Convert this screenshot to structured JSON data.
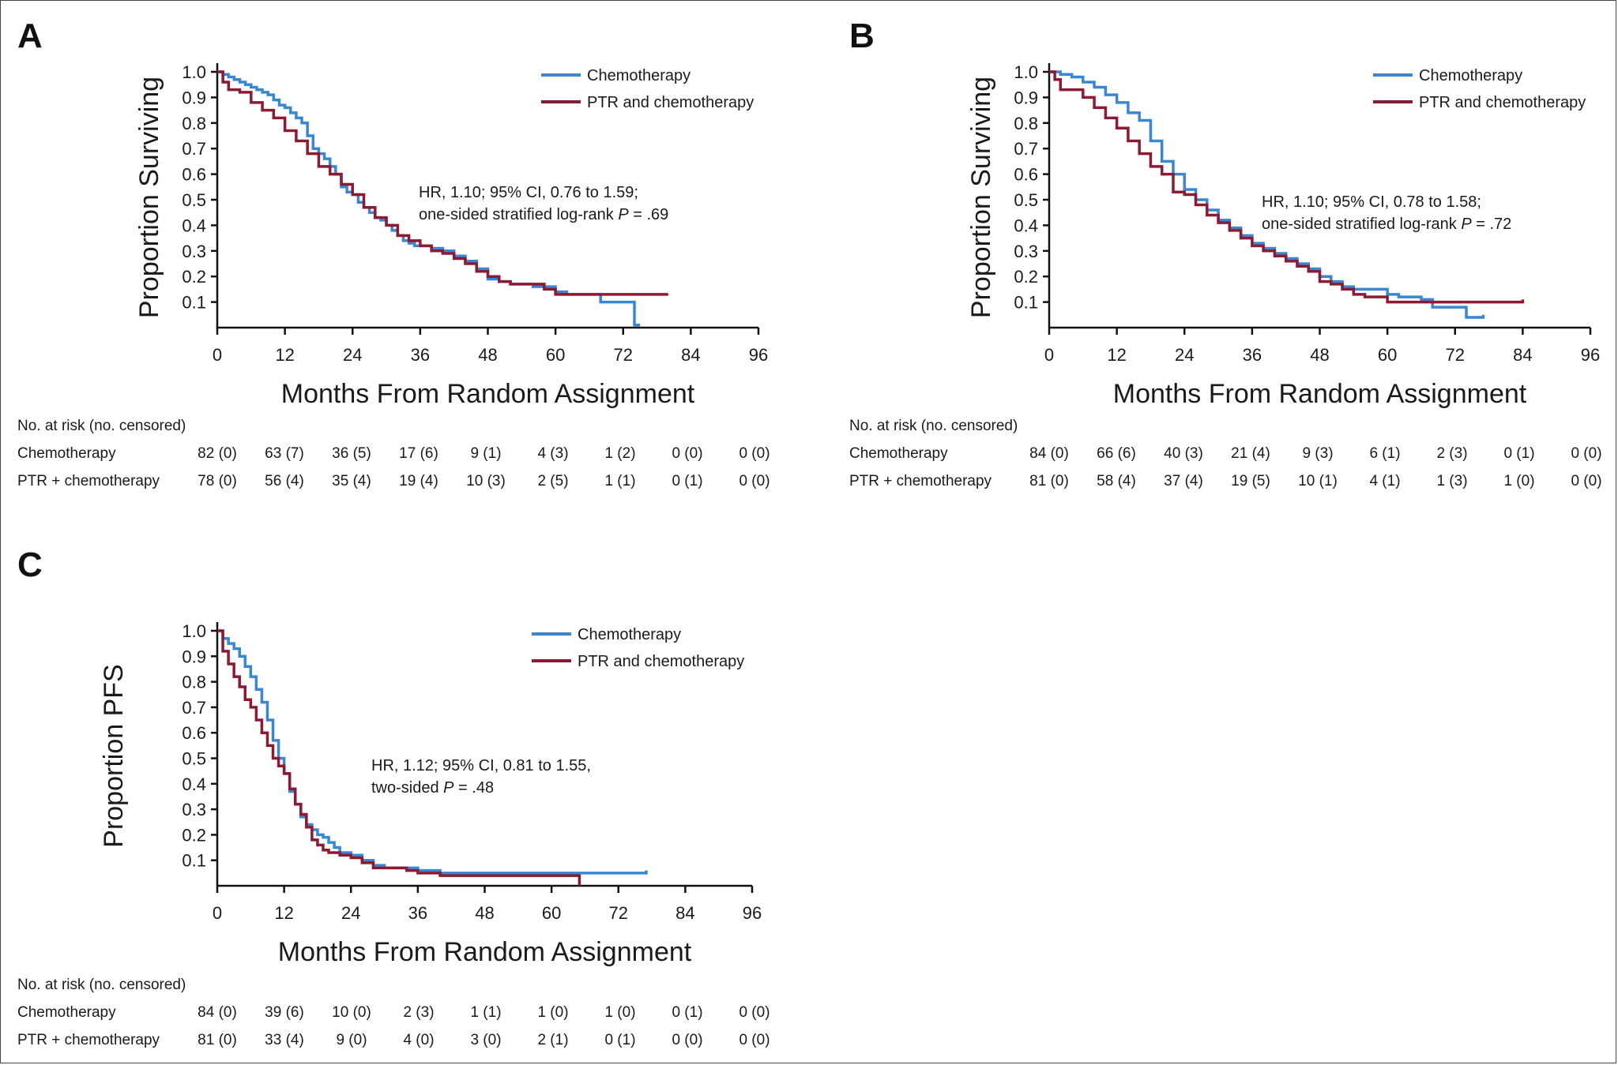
{
  "colors": {
    "chemo": "#3a86d1",
    "ptr": "#8b1a32",
    "axis": "#111111"
  },
  "chart_data": [
    {
      "panel": "A",
      "type": "line",
      "ylabel": "Proportion Surviving",
      "xlabel": "Months From Random Assignment",
      "xlim": [
        0,
        96
      ],
      "ylim": [
        0,
        1.0
      ],
      "xticks": [
        "0",
        "12",
        "24",
        "36",
        "48",
        "60",
        "72",
        "84",
        "96"
      ],
      "yticks": [
        "1.0",
        "0.9",
        "0.8",
        "0.7",
        "0.6",
        "0.5",
        "0.4",
        "0.3",
        "0.2",
        "0.1"
      ],
      "legend": [
        "Chemotherapy",
        "PTR and chemotherapy"
      ],
      "annotation_line1": "HR, 1.10; 95% CI, 0.76 to 1.59;",
      "annotation_line2_prefix": "one-sided stratified log-rank ",
      "annotation_p": "P",
      "annotation_line2_suffix": " = .69",
      "series": [
        {
          "name": "Chemotherapy",
          "x": [
            0,
            1,
            2,
            3,
            4,
            5,
            6,
            7,
            8,
            9,
            10,
            11,
            12,
            13,
            14,
            15,
            16,
            17,
            18,
            19,
            20,
            21,
            22,
            23,
            24,
            25,
            26,
            27,
            28,
            29,
            30,
            31,
            32,
            33,
            34,
            35,
            36,
            38,
            40,
            42,
            44,
            46,
            48,
            50,
            52,
            54,
            56,
            58,
            60,
            62,
            64,
            66,
            68,
            70,
            72,
            74,
            75
          ],
          "y": [
            1.0,
            0.99,
            0.98,
            0.97,
            0.96,
            0.95,
            0.94,
            0.93,
            0.92,
            0.91,
            0.89,
            0.87,
            0.86,
            0.84,
            0.82,
            0.8,
            0.75,
            0.7,
            0.68,
            0.66,
            0.63,
            0.6,
            0.55,
            0.53,
            0.52,
            0.49,
            0.47,
            0.45,
            0.43,
            0.42,
            0.4,
            0.38,
            0.36,
            0.34,
            0.33,
            0.32,
            0.32,
            0.31,
            0.3,
            0.28,
            0.26,
            0.23,
            0.19,
            0.18,
            0.17,
            0.17,
            0.16,
            0.16,
            0.14,
            0.13,
            0.13,
            0.13,
            0.1,
            0.1,
            0.1,
            0.01,
            0.01
          ]
        },
        {
          "name": "PTR and chemotherapy",
          "x": [
            0,
            1,
            2,
            4,
            6,
            8,
            10,
            12,
            14,
            16,
            18,
            20,
            22,
            24,
            26,
            28,
            30,
            32,
            34,
            36,
            38,
            40,
            42,
            44,
            46,
            48,
            50,
            52,
            54,
            56,
            58,
            60,
            62,
            64,
            66,
            68,
            70,
            72,
            74,
            76,
            78,
            80
          ],
          "y": [
            1.0,
            0.96,
            0.93,
            0.92,
            0.88,
            0.85,
            0.82,
            0.77,
            0.73,
            0.68,
            0.63,
            0.6,
            0.56,
            0.52,
            0.47,
            0.43,
            0.4,
            0.36,
            0.34,
            0.32,
            0.3,
            0.29,
            0.27,
            0.25,
            0.22,
            0.2,
            0.18,
            0.17,
            0.17,
            0.17,
            0.15,
            0.13,
            0.13,
            0.13,
            0.13,
            0.13,
            0.13,
            0.13,
            0.13,
            0.13,
            0.13,
            0.13
          ]
        }
      ],
      "risk": {
        "header": "No. at risk (no. censored)",
        "rows": [
          {
            "label": "Chemotherapy",
            "values": [
              "82 (0)",
              "63 (7)",
              "36 (5)",
              "17 (6)",
              "9 (1)",
              "4 (3)",
              "1 (2)",
              "0 (0)",
              "0 (0)"
            ]
          },
          {
            "label": "PTR  + chemotherapy",
            "values": [
              "78 (0)",
              "56 (4)",
              "35 (4)",
              "19 (4)",
              "10 (3)",
              "2 (5)",
              "1 (1)",
              "0 (1)",
              "0 (0)"
            ]
          }
        ]
      }
    },
    {
      "panel": "B",
      "type": "line",
      "ylabel": "Proportion Surviving",
      "xlabel": "Months From Random Assignment",
      "xlim": [
        0,
        96
      ],
      "ylim": [
        0,
        1.0
      ],
      "xticks": [
        "0",
        "12",
        "24",
        "36",
        "48",
        "60",
        "72",
        "84",
        "96"
      ],
      "yticks": [
        "1.0",
        "0.9",
        "0.8",
        "0.7",
        "0.6",
        "0.5",
        "0.4",
        "0.3",
        "0.2",
        "0.1"
      ],
      "legend": [
        "Chemotherapy",
        "PTR and chemotherapy"
      ],
      "annotation_line1": "HR, 1.10; 95% CI, 0.78 to 1.58;",
      "annotation_line2_prefix": "one-sided stratified log-rank ",
      "annotation_p": "P",
      "annotation_line2_suffix": " = .72",
      "series": [
        {
          "name": "Chemotherapy",
          "x": [
            0,
            2,
            4,
            6,
            8,
            10,
            12,
            14,
            16,
            18,
            20,
            22,
            24,
            26,
            28,
            30,
            32,
            34,
            36,
            38,
            40,
            42,
            44,
            46,
            48,
            50,
            52,
            54,
            56,
            58,
            60,
            62,
            64,
            66,
            68,
            70,
            72,
            74,
            76,
            77
          ],
          "y": [
            1.0,
            0.99,
            0.98,
            0.96,
            0.94,
            0.91,
            0.88,
            0.84,
            0.81,
            0.73,
            0.65,
            0.6,
            0.54,
            0.5,
            0.46,
            0.42,
            0.39,
            0.36,
            0.33,
            0.31,
            0.29,
            0.27,
            0.25,
            0.23,
            0.2,
            0.18,
            0.16,
            0.15,
            0.15,
            0.15,
            0.13,
            0.12,
            0.12,
            0.11,
            0.08,
            0.08,
            0.08,
            0.04,
            0.04,
            0.05
          ]
        },
        {
          "name": "PTR and chemotherapy",
          "x": [
            0,
            1,
            2,
            4,
            6,
            8,
            10,
            12,
            14,
            16,
            18,
            20,
            22,
            24,
            26,
            28,
            30,
            32,
            34,
            36,
            38,
            40,
            42,
            44,
            46,
            48,
            50,
            52,
            54,
            56,
            58,
            60,
            62,
            64,
            66,
            68,
            70,
            72,
            74,
            76,
            78,
            80,
            82,
            84
          ],
          "y": [
            1.0,
            0.97,
            0.93,
            0.93,
            0.9,
            0.86,
            0.82,
            0.78,
            0.73,
            0.68,
            0.63,
            0.6,
            0.53,
            0.52,
            0.48,
            0.44,
            0.41,
            0.38,
            0.35,
            0.32,
            0.3,
            0.28,
            0.26,
            0.24,
            0.22,
            0.18,
            0.17,
            0.15,
            0.13,
            0.12,
            0.12,
            0.1,
            0.1,
            0.1,
            0.1,
            0.1,
            0.1,
            0.1,
            0.1,
            0.1,
            0.1,
            0.1,
            0.1,
            0.11
          ]
        }
      ],
      "risk": {
        "header": "No. at risk (no. censored)",
        "rows": [
          {
            "label": "Chemotherapy",
            "values": [
              "84 (0)",
              "66 (6)",
              "40 (3)",
              "21 (4)",
              "9 (3)",
              "6 (1)",
              "2 (3)",
              "0 (1)",
              "0 (0)"
            ]
          },
          {
            "label": "PTR  + chemotherapy",
            "values": [
              "81 (0)",
              "58 (4)",
              "37 (4)",
              "19 (5)",
              "10 (1)",
              "4 (1)",
              "1 (3)",
              "1 (0)",
              "0 (0)"
            ]
          }
        ]
      }
    },
    {
      "panel": "C",
      "type": "line",
      "ylabel": "Proportion PFS",
      "xlabel": "Months From Random Assignment",
      "xlim": [
        0,
        96
      ],
      "ylim": [
        0,
        1.0
      ],
      "xticks": [
        "0",
        "12",
        "24",
        "36",
        "48",
        "60",
        "72",
        "84",
        "96"
      ],
      "yticks": [
        "1.0",
        "0.9",
        "0.8",
        "0.7",
        "0.6",
        "0.5",
        "0.4",
        "0.3",
        "0.2",
        "0.1"
      ],
      "legend": [
        "Chemotherapy",
        "PTR and chemotherapy"
      ],
      "annotation_line1": "HR, 1.12; 95% CI, 0.81 to 1.55,",
      "annotation_line2_prefix": "two-sided ",
      "annotation_p": "P",
      "annotation_line2_suffix": " = .48",
      "series": [
        {
          "name": "Chemotherapy",
          "x": [
            0,
            1,
            2,
            3,
            4,
            5,
            6,
            7,
            8,
            9,
            10,
            11,
            12,
            13,
            14,
            15,
            16,
            17,
            18,
            19,
            20,
            21,
            22,
            24,
            26,
            28,
            30,
            32,
            34,
            36,
            40,
            44,
            48,
            52,
            56,
            60,
            64,
            68,
            72,
            76,
            77
          ],
          "y": [
            1.0,
            0.97,
            0.95,
            0.93,
            0.9,
            0.86,
            0.82,
            0.77,
            0.72,
            0.65,
            0.57,
            0.5,
            0.44,
            0.37,
            0.32,
            0.27,
            0.24,
            0.22,
            0.2,
            0.19,
            0.17,
            0.15,
            0.13,
            0.12,
            0.1,
            0.08,
            0.07,
            0.07,
            0.07,
            0.06,
            0.05,
            0.05,
            0.05,
            0.05,
            0.05,
            0.05,
            0.05,
            0.05,
            0.05,
            0.05,
            0.06
          ]
        },
        {
          "name": "PTR and chemotherapy",
          "x": [
            0,
            1,
            2,
            3,
            4,
            5,
            6,
            7,
            8,
            9,
            10,
            11,
            12,
            13,
            14,
            15,
            16,
            17,
            18,
            19,
            20,
            22,
            24,
            26,
            28,
            30,
            32,
            34,
            36,
            40,
            44,
            48,
            52,
            56,
            60,
            64,
            65
          ],
          "y": [
            1.0,
            0.92,
            0.87,
            0.82,
            0.78,
            0.73,
            0.7,
            0.65,
            0.6,
            0.55,
            0.5,
            0.47,
            0.44,
            0.38,
            0.32,
            0.28,
            0.23,
            0.18,
            0.16,
            0.14,
            0.13,
            0.12,
            0.11,
            0.09,
            0.07,
            0.07,
            0.07,
            0.06,
            0.05,
            0.04,
            0.04,
            0.04,
            0.04,
            0.04,
            0.04,
            0.04,
            0.0
          ]
        }
      ],
      "risk": {
        "header": "No. at risk (no. censored)",
        "rows": [
          {
            "label": "Chemotherapy",
            "values": [
              "84 (0)",
              "39 (6)",
              "10 (0)",
              "2 (3)",
              "1 (1)",
              "1 (0)",
              "1 (0)",
              "0 (1)",
              "0 (0)"
            ]
          },
          {
            "label": "PTR  + chemotherapy",
            "values": [
              "81 (0)",
              "33 (4)",
              "9 (0)",
              "4 (0)",
              "3 (0)",
              "2 (1)",
              "0 (1)",
              "0 (0)",
              "0 (0)"
            ]
          }
        ]
      }
    }
  ]
}
